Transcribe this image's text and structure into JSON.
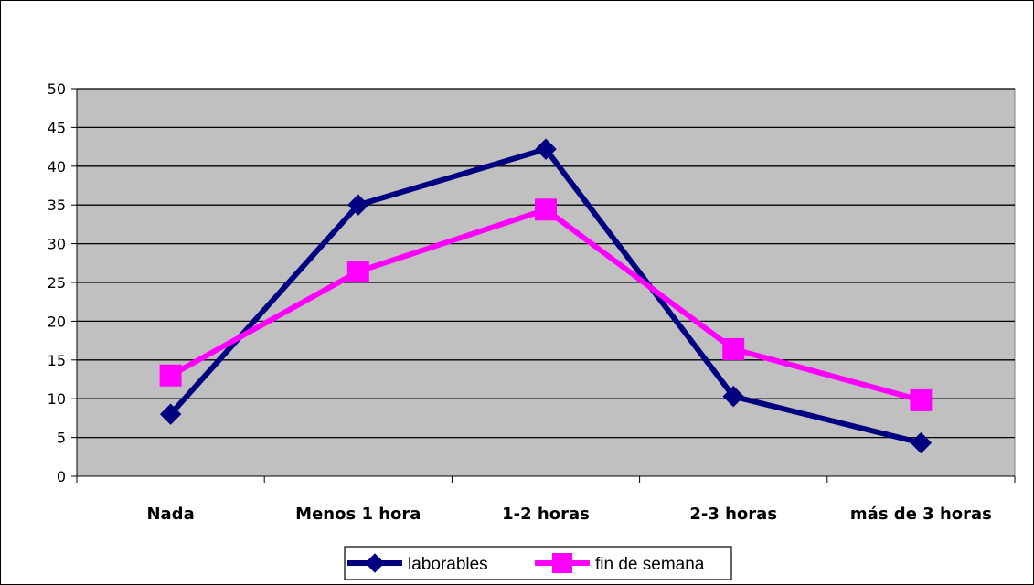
{
  "chart_data": {
    "type": "line",
    "title": "",
    "xlabel": "",
    "ylabel": "",
    "categories": [
      "Nada",
      "Menos 1 hora",
      "1-2 horas",
      "2-3 horas",
      "más de 3 horas"
    ],
    "ylim": [
      0,
      50
    ],
    "yticks": [
      0,
      5,
      10,
      15,
      20,
      25,
      30,
      35,
      40,
      45,
      50
    ],
    "grid": true,
    "plot_background": "#c0c0c0",
    "legend_position": "bottom",
    "series": [
      {
        "name": "laborables",
        "values": [
          8,
          35,
          42.2,
          10.3,
          4.3
        ],
        "color": "#000080",
        "marker": "diamond"
      },
      {
        "name": "fin de semana",
        "values": [
          13,
          26.4,
          34.4,
          16.4,
          9.8
        ],
        "color": "#ff00ff",
        "marker": "square"
      }
    ]
  }
}
